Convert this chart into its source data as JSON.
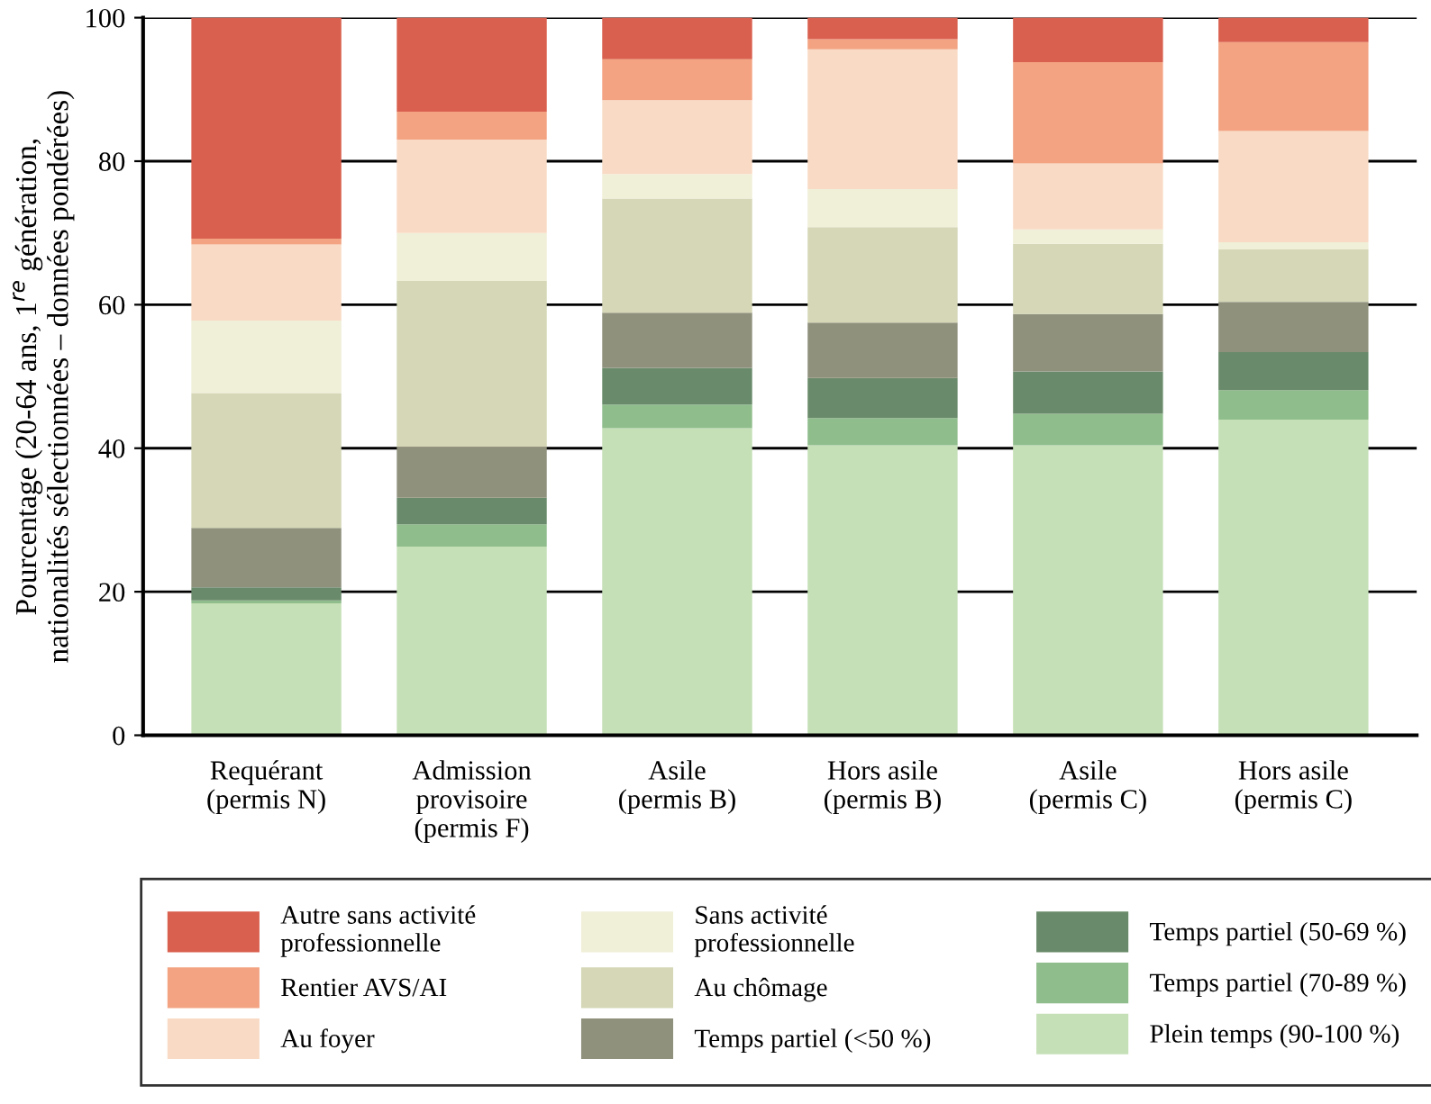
{
  "chart_data": {
    "type": "bar",
    "stacked": true,
    "ylabel": "Pourcentage (20-64 ans, 1$^{re}$ génération,\nnationalités sélectionnées – données pondérées)",
    "categories": [
      "Requérant\n(permis N)",
      "Admission\nprovisoire\n(permis F)",
      "Asile\n(permis B)",
      "Hors asile\n(permis B)",
      "Asile\n(permis C)",
      "Hors asile\n(permis C)"
    ],
    "series": [
      {
        "name": "Plein temps (90-100 %)",
        "color": "#c5e0b6",
        "values": [
          18.4,
          26.3,
          42.8,
          40.4,
          40.4,
          44.0
        ]
      },
      {
        "name": "Temps partiel (70-89 %)",
        "color": "#90bd8c",
        "values": [
          0.4,
          3.1,
          3.3,
          3.8,
          4.4,
          4.1
        ]
      },
      {
        "name": "Temps partiel (50-69 %)",
        "color": "#6a8b6b",
        "values": [
          1.8,
          3.7,
          5.1,
          5.6,
          5.9,
          5.3
        ]
      },
      {
        "name": "Temps partiel (<50 %)",
        "color": "#90917d",
        "values": [
          8.3,
          7.1,
          7.7,
          7.7,
          8.0,
          7.0
        ]
      },
      {
        "name": "Au chômage",
        "color": "#d5d7b6",
        "values": [
          18.8,
          23.1,
          15.9,
          13.3,
          9.8,
          7.3
        ]
      },
      {
        "name": "Sans activité\nprofessionnelle",
        "color": "#f0efd8",
        "values": [
          10.1,
          6.7,
          3.4,
          5.3,
          2.0,
          1.0
        ]
      },
      {
        "name": "Au foyer",
        "color": "#f9dbc5",
        "values": [
          10.6,
          13.0,
          10.3,
          19.5,
          9.2,
          15.5
        ]
      },
      {
        "name": "Rentier AVS/AI",
        "color": "#f3a382",
        "values": [
          0.8,
          3.9,
          5.7,
          1.4,
          14.1,
          12.4
        ]
      },
      {
        "name": "Autre sans activité\nprofessionnelle",
        "color": "#d95f4e",
        "values": [
          30.8,
          13.1,
          5.8,
          3.0,
          6.2,
          3.4
        ]
      }
    ],
    "ylim": [
      0,
      100
    ],
    "yticks": [
      0,
      20,
      40,
      60,
      80,
      100
    ],
    "grid": "y",
    "legend": "bottom"
  }
}
